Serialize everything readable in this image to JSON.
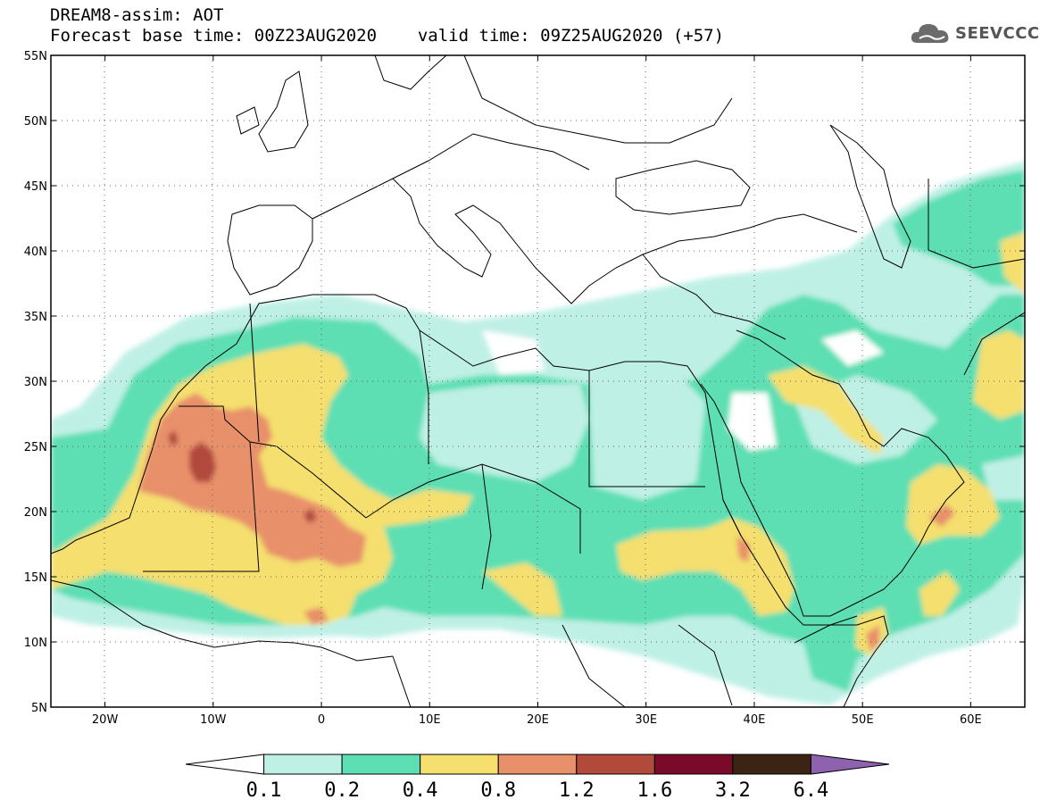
{
  "header": {
    "title": "DREAM8-assim: AOT",
    "forecast_base_label": "Forecast base time:",
    "forecast_base_time": "00Z23AUG2020",
    "valid_label": "valid time:",
    "valid_time": "09Z25AUG2020 (+57)"
  },
  "logo": {
    "text": "SEEVCCC",
    "icon": "cloud-icon"
  },
  "map": {
    "variable": "Aerosol optical thickness (AOT)",
    "lon_range": [
      -25,
      65
    ],
    "lat_range": [
      5,
      55
    ],
    "lat_ticks": [
      "55N",
      "50N",
      "45N",
      "40N",
      "35N",
      "30N",
      "25N",
      "20N",
      "15N",
      "10N",
      "5N"
    ],
    "lon_ticks": [
      "20W",
      "10W",
      "0",
      "10E",
      "20E",
      "30E",
      "40E",
      "50E",
      "60E"
    ],
    "grid": "dotted"
  },
  "colorbar": {
    "levels": [
      "0.1",
      "0.2",
      "0.4",
      "0.8",
      "1.2",
      "1.6",
      "3.2",
      "6.4"
    ],
    "colors": [
      "#ffffff",
      "#bff0e6",
      "#5ddfb3",
      "#f5df6e",
      "#e8906a",
      "#b24a3c",
      "#7a0a2a",
      "#3b2414",
      "#8e62ae"
    ]
  }
}
